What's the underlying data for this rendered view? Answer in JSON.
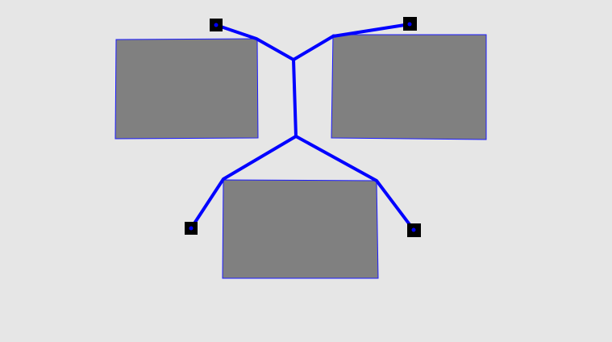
{
  "colors": {
    "background": "#e6e6e6",
    "block_fill": "#808080",
    "block_border": "#1a1aff",
    "link": "#0000ff",
    "anchor": "#000000"
  },
  "blocks": [
    {
      "name": "block-top-left"
    },
    {
      "name": "block-top-right"
    },
    {
      "name": "block-bottom"
    }
  ],
  "anchors": [
    {
      "name": "anchor-top-left"
    },
    {
      "name": "anchor-top-right"
    },
    {
      "name": "anchor-bottom-left"
    },
    {
      "name": "anchor-bottom-right"
    }
  ]
}
